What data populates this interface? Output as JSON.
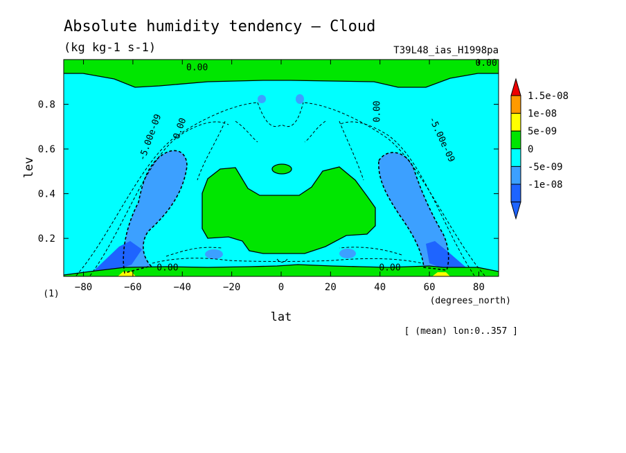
{
  "chart_data": {
    "type": "contour",
    "title": "Absolute humidity tendency — Cloud",
    "units": "(kg kg-1 s-1)",
    "run_id": "T39L48_ias_H1998pa",
    "xlabel": "lat",
    "xunits": "(degrees_north)",
    "ylabel": "lev",
    "yunits": "(1)",
    "mean_note": "[ (mean) lon:0..357 ]",
    "xlim": [
      -88,
      88
    ],
    "ylim": [
      1.0,
      0.03
    ],
    "x_ticks": [
      -80,
      -60,
      -40,
      -20,
      0,
      20,
      40,
      60,
      80
    ],
    "x_tick_labels": [
      "−80",
      "−60",
      "−40",
      "−20",
      "0",
      "20",
      "40",
      "60",
      "80"
    ],
    "y_ticks": [
      0.2,
      0.4,
      0.6,
      0.8
    ],
    "y_tick_labels": [
      "0.2",
      "0.4",
      "0.6",
      "0.8"
    ],
    "legend": {
      "placement": "right",
      "levels": [
        {
          "label": "1.5e-08",
          "color": "#ff9a00"
        },
        {
          "label": "1e-08",
          "color": "#ffff00"
        },
        {
          "label": "5e-09",
          "color": "#00e600"
        },
        {
          "label": "0",
          "color": "#00ffff"
        },
        {
          "label": "-5e-09",
          "color": "#3ca0ff"
        },
        {
          "label": "-1e-08",
          "color": "#1e64ff"
        }
      ],
      "top_arrow_color": "#ee0000",
      "bottom_arrow_color": "#1e64ff"
    },
    "contour_labels": [
      {
        "text": "0.00",
        "lat": -46,
        "lev": 0.068
      },
      {
        "text": "0.00",
        "lat": 44,
        "lev": 0.068
      },
      {
        "text": "-5.00e-09",
        "lat": -52,
        "lev": 0.66
      },
      {
        "text": "-5.00e-09",
        "lat": 64,
        "lev": 0.65
      },
      {
        "text": "0.00",
        "lat": -40,
        "lev": 0.7
      },
      {
        "text": "0.00",
        "lat": 40,
        "lev": 0.78
      },
      {
        "text": "0.00",
        "lat": -34,
        "lev": 0.965
      },
      {
        "text": "0.00",
        "lat": 83,
        "lev": 0.985
      }
    ]
  }
}
